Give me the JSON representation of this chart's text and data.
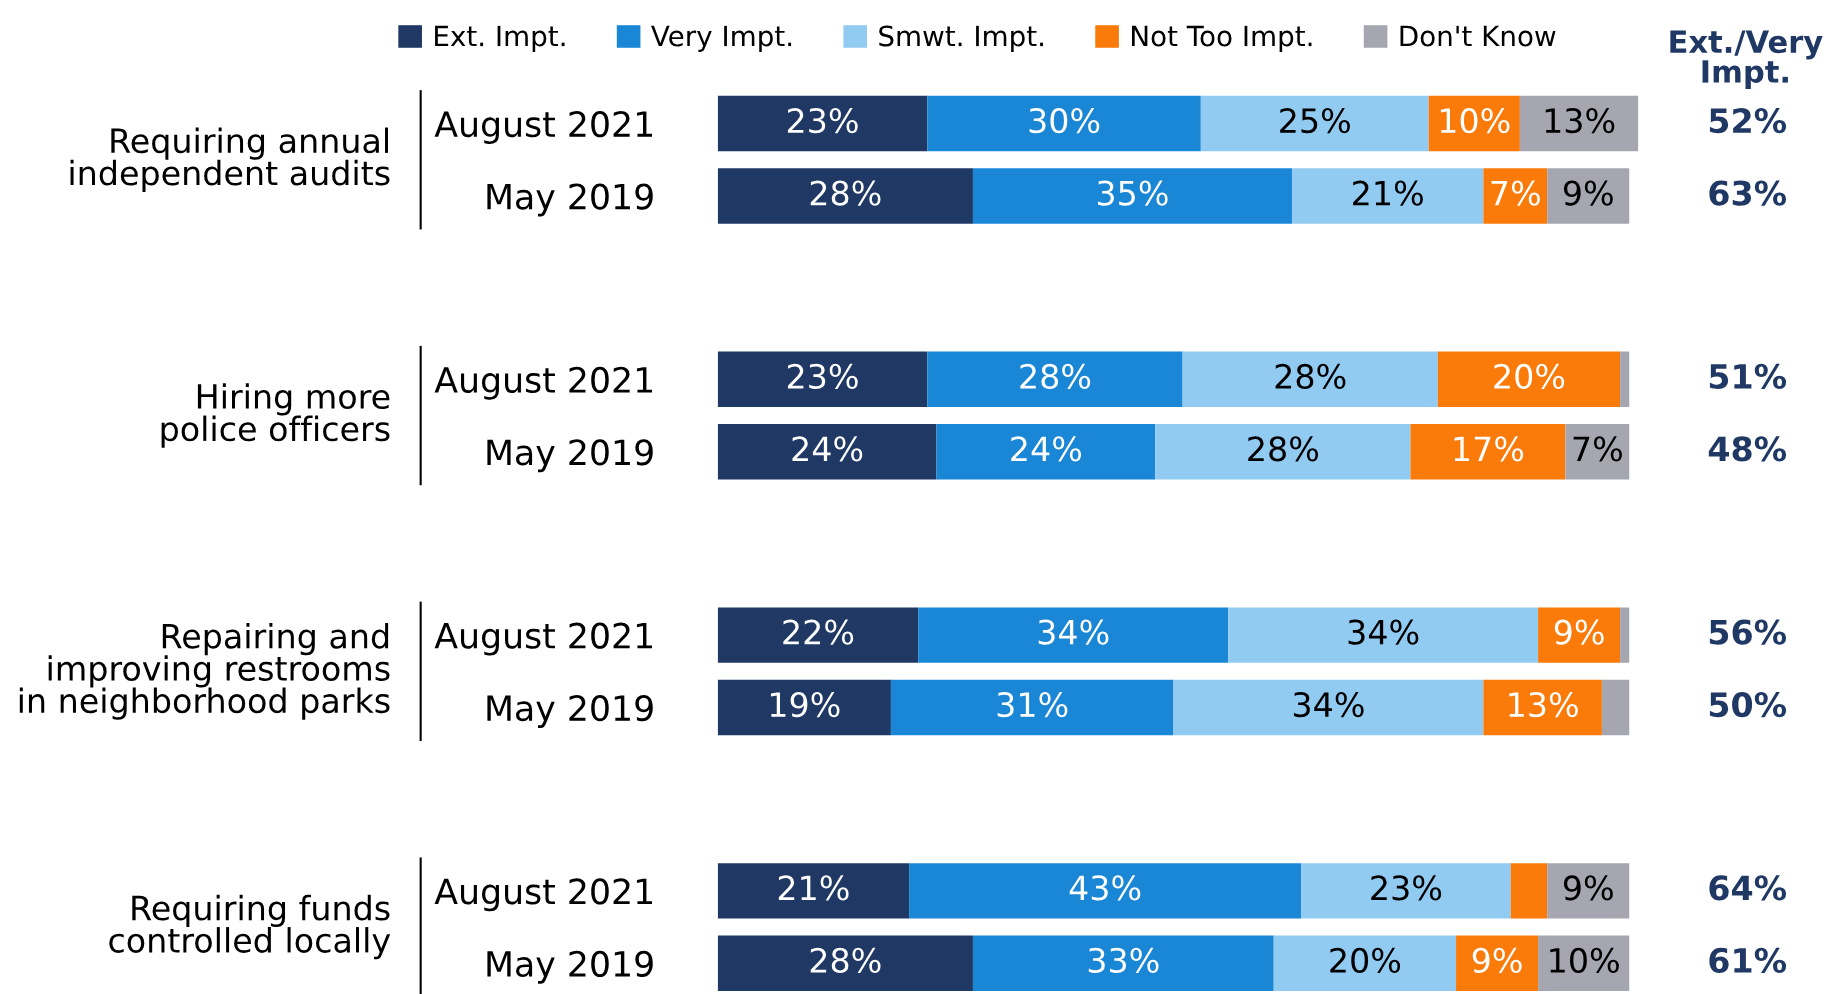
{
  "chart_data": {
    "type": "bar",
    "orientation": "horizontal",
    "stacked": true,
    "xlim": [
      0,
      101
    ],
    "grid": false,
    "legend": "top",
    "categories": [
      "August 2021",
      "May 2019",
      "August 2021",
      "May 2019",
      "August 2021",
      "May 2019",
      "August 2021",
      "May 2019"
    ],
    "series": [
      {
        "name": "Ext. Impt.",
        "color": "#1f3864",
        "values": [
          23,
          28,
          23,
          24,
          22,
          19,
          21,
          28
        ],
        "value_labels": [
          "23%",
          "28%",
          "23%",
          "24%",
          "22%",
          "19%",
          "21%",
          "28%"
        ]
      },
      {
        "name": "Very Impt.",
        "color": "#1a86d6",
        "values": [
          30,
          35,
          28,
          24,
          34,
          31,
          43,
          33
        ],
        "value_labels": [
          "30%",
          "35%",
          "28%",
          "24%",
          "34%",
          "31%",
          "43%",
          "33%"
        ]
      },
      {
        "name": "Smwt. Impt.",
        "color": "#92cbf2",
        "values": [
          25,
          21,
          28,
          28,
          34,
          34,
          23,
          20
        ],
        "value_labels": [
          "25%",
          "21%",
          "28%",
          "28%",
          "34%",
          "34%",
          "23%",
          "20%"
        ]
      },
      {
        "name": "Not Too Impt.",
        "color": "#fa7a0a",
        "values": [
          10,
          7,
          20,
          17,
          9,
          13,
          4,
          9
        ],
        "value_labels": [
          "10%",
          "7%",
          "20%",
          "17%",
          "9%",
          "13%",
          null,
          "9%"
        ]
      },
      {
        "name": "Don't Know",
        "color": "#a6a6b0",
        "values": [
          13,
          9,
          1,
          7,
          1,
          3,
          9,
          10
        ],
        "value_labels": [
          "13%",
          "9%",
          null,
          "7%",
          null,
          null,
          "9%",
          "10%"
        ]
      }
    ],
    "annotations": [
      "Requiring annual\nindependent audits",
      "Hiring more\npolice officers",
      "Repairing and\nimproving restrooms\nin neighborhood parks",
      "Requiring funds\ncontrolled locally",
      "Ext./Very\nImpt.",
      "52%",
      "63%",
      "51%",
      "48%",
      "56%",
      "50%",
      "64%",
      "61%"
    ]
  }
}
